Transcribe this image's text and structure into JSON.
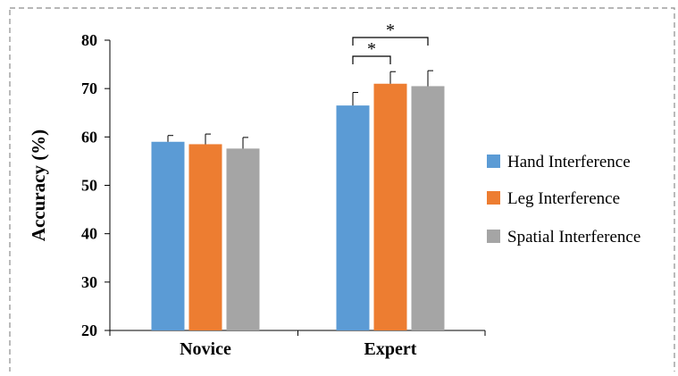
{
  "chart_data": {
    "type": "bar",
    "categories": [
      "Novice",
      "Expert"
    ],
    "ylabel": "Accuracy (%)",
    "xlabel": "",
    "ylim": [
      20,
      80
    ],
    "yticks": [
      20,
      30,
      40,
      50,
      60,
      70,
      80
    ],
    "grid": false,
    "legend_position": "right",
    "series": [
      {
        "name": "Hand Interference",
        "color": "#5b9bd5",
        "values": [
          59.0,
          66.5
        ],
        "errors": [
          1.3,
          2.7
        ]
      },
      {
        "name": "Leg Interference",
        "color": "#ed7d31",
        "values": [
          58.5,
          71.0
        ],
        "errors": [
          2.1,
          2.5
        ]
      },
      {
        "name": "Spatial Interference",
        "color": "#a5a5a5",
        "values": [
          57.6,
          70.5
        ],
        "errors": [
          2.3,
          3.2
        ]
      }
    ],
    "significance": [
      {
        "category": "Expert",
        "from_series": 0,
        "to_series": 1,
        "label": "*"
      },
      {
        "category": "Expert",
        "from_series": 0,
        "to_series": 2,
        "label": "*"
      }
    ]
  }
}
